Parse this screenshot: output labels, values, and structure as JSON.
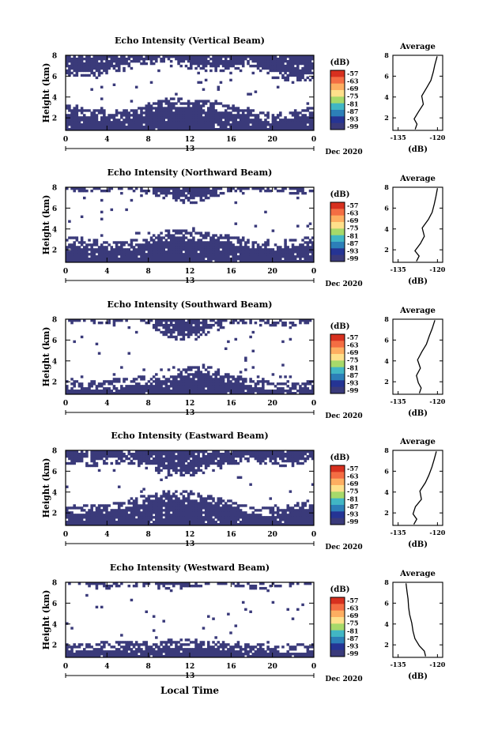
{
  "chart_data": {
    "type": "heatmap",
    "xlabel": "Local Time",
    "date_label": "Dec 2020",
    "day_label": "13",
    "x_ticks": [
      "0",
      "4",
      "8",
      "12",
      "16",
      "20",
      "0"
    ],
    "y_ticks": [
      "2",
      "4",
      "6",
      "8"
    ],
    "ylabel": "Height (km)",
    "ylim": [
      0.8,
      8
    ],
    "xlim": [
      0,
      24
    ],
    "colorbar": {
      "unit": "(dB)",
      "ticks": [
        "-57",
        "-63",
        "-69",
        "-75",
        "-81",
        "-87",
        "-93",
        "-99"
      ],
      "colors": [
        "#d7301f",
        "#f46d43",
        "#fdae61",
        "#fee08b",
        "#a6d96a",
        "#41b6c4",
        "#2c7fb8",
        "#253494",
        "#3a3a7a"
      ]
    },
    "profile_axis": {
      "title": "Average",
      "xlabel": "(dB)",
      "x_ticks": [
        "-135",
        "-120"
      ],
      "y_ticks": [
        "2",
        "4",
        "6",
        "8"
      ]
    },
    "panels": [
      {
        "title": "Echo Intensity (Vertical Beam)",
        "low_layer_top_km": [
          3.0,
          2.6,
          2.4,
          2.5,
          3.2,
          3.6,
          3.5,
          3.3,
          3.0,
          2.5,
          2.1,
          2.4,
          2.9
        ],
        "high_layer_base_km": [
          6.3,
          6.1,
          6.4,
          6.7,
          7.2,
          7.4,
          6.8,
          6.6,
          6.5,
          7.0,
          6.0,
          5.6,
          5.8
        ],
        "profile": {
          "x": [
            -128.5,
            -127.8,
            -128.9,
            -127.2,
            -125.4,
            -126.0,
            -124.1,
            -122.5,
            -121.6,
            -121.0,
            -120.1
          ],
          "y": [
            0.9,
            1.4,
            1.9,
            2.6,
            3.3,
            4.1,
            4.9,
            5.6,
            6.4,
            7.1,
            7.9
          ]
        }
      },
      {
        "title": "Echo Intensity (Northward Beam)",
        "low_layer_top_km": [
          3.2,
          2.8,
          2.5,
          2.6,
          2.9,
          3.7,
          3.6,
          3.3,
          3.1,
          2.7,
          2.4,
          2.8,
          3.0
        ],
        "high_layer_base_km": [
          7.6,
          7.8,
          7.7,
          7.9,
          7.5,
          6.9,
          6.5,
          7.1,
          7.8,
          7.9,
          7.7,
          7.4,
          7.8
        ],
        "profile": {
          "x": [
            -128.0,
            -127.0,
            -128.6,
            -126.5,
            -125.0,
            -125.8,
            -123.5,
            -122.0,
            -121.2,
            -120.6,
            -120.0
          ],
          "y": [
            0.9,
            1.4,
            1.9,
            2.6,
            3.3,
            4.1,
            4.9,
            5.6,
            6.4,
            7.1,
            7.9
          ]
        }
      },
      {
        "title": "Echo Intensity (Southward Beam)",
        "low_layer_top_km": [
          1.8,
          1.7,
          1.9,
          2.1,
          2.3,
          2.6,
          3.3,
          3.2,
          2.5,
          2.0,
          1.7,
          1.6,
          1.8
        ],
        "high_layer_base_km": [
          7.8,
          7.9,
          7.8,
          7.9,
          7.6,
          6.4,
          6.0,
          6.8,
          7.7,
          7.8,
          7.5,
          7.6,
          7.9
        ],
        "profile": {
          "x": [
            -126.9,
            -126.2,
            -127.3,
            -128.0,
            -126.5,
            -127.6,
            -125.9,
            -124.2,
            -123.1,
            -122.0,
            -121.0
          ],
          "y": [
            0.9,
            1.4,
            1.9,
            2.6,
            3.3,
            4.1,
            4.9,
            5.6,
            6.4,
            7.1,
            7.9
          ]
        }
      },
      {
        "title": "Echo Intensity (Eastward Beam)",
        "low_layer_top_km": [
          2.6,
          2.4,
          2.5,
          3.0,
          3.5,
          3.9,
          3.8,
          3.4,
          2.9,
          2.4,
          2.2,
          2.6,
          3.0
        ],
        "high_layer_base_km": [
          6.9,
          6.6,
          6.8,
          7.0,
          6.3,
          5.8,
          5.6,
          6.2,
          6.8,
          7.1,
          6.7,
          6.5,
          6.9
        ],
        "profile": {
          "x": [
            -129.0,
            -127.9,
            -129.3,
            -128.4,
            -126.1,
            -126.7,
            -124.6,
            -123.3,
            -122.1,
            -121.3,
            -120.4
          ],
          "y": [
            0.9,
            1.4,
            1.9,
            2.6,
            3.3,
            4.1,
            4.9,
            5.6,
            6.4,
            7.1,
            7.9
          ]
        }
      },
      {
        "title": "Echo Intensity (Westward Beam)",
        "low_layer_top_km": [
          1.9,
          1.9,
          2.0,
          2.1,
          2.0,
          2.2,
          2.3,
          2.1,
          1.9,
          1.8,
          1.7,
          1.8,
          1.9
        ],
        "high_layer_base_km": [
          7.9,
          7.9,
          7.6,
          7.8,
          7.9,
          7.3,
          7.7,
          7.9,
          7.9,
          7.5,
          7.7,
          7.9,
          7.9
        ],
        "profile": {
          "x": [
            -124.5,
            -125.0,
            -126.9,
            -128.6,
            -129.3,
            -129.8,
            -130.6,
            -131.0,
            -131.2,
            -131.6,
            -132.0
          ],
          "y": [
            0.9,
            1.4,
            1.9,
            2.6,
            3.3,
            4.1,
            4.9,
            5.6,
            6.4,
            7.1,
            7.9
          ]
        }
      }
    ]
  }
}
